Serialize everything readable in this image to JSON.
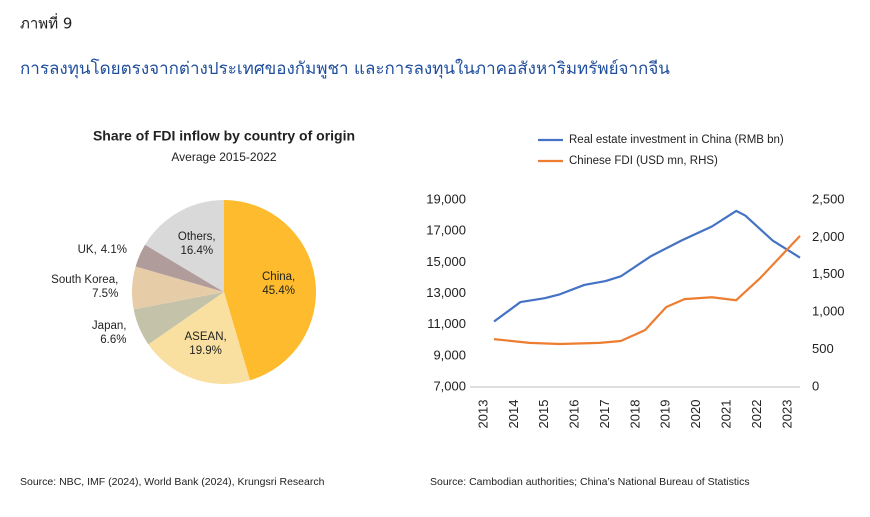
{
  "header": {
    "label": "ภาพที่ 9",
    "title": "การลงทุนโดยตรงจากต่างประเทศของกัมพูชา และการลงทุนในภาคอสังหาริมทรัพย์จากจีน"
  },
  "chart_data": [
    {
      "type": "pie",
      "title": "Share of FDI inflow by country of origin",
      "subtitle": "Average 2015-2022",
      "categories": [
        "China,",
        "ASEAN,",
        "Japan,",
        "South Korea,",
        "UK,",
        "Others,"
      ],
      "values": [
        45.4,
        19.9,
        6.6,
        7.5,
        4.1,
        16.4
      ],
      "value_labels": [
        "45.4%",
        "19.9%",
        "6.6%",
        "7.5%",
        "4.1%",
        "16.4%"
      ],
      "colors": [
        "#fdbb2d",
        "#f9e0a0",
        "#c5c2aa",
        "#e6cda8",
        "#b19c9c",
        "#d9d9d9"
      ],
      "source": "Source: NBC, IMF (2024), World Bank (2024), Krungsri Research"
    },
    {
      "type": "line",
      "xlim": [
        2012.54,
        2023.4
      ],
      "xticks": [
        2013,
        2014,
        2015,
        2016,
        2017,
        2018,
        2019,
        2020,
        2021,
        2022,
        2023
      ],
      "ylim": [
        7000,
        19000
      ],
      "yticks": [
        {
          "value": 7000,
          "label": "7,000"
        },
        {
          "value": 9000,
          "label": "9,000"
        },
        {
          "value": 11000,
          "label": "11,000"
        },
        {
          "value": 13000,
          "label": "13,000"
        },
        {
          "value": 15000,
          "label": "15,000"
        },
        {
          "value": 17000,
          "label": "17,000"
        },
        {
          "value": 19000,
          "label": "19,000"
        }
      ],
      "y2lim": [
        0,
        2500
      ],
      "y2ticks": [
        0,
        500,
        {
          "value": 1000,
          "label": "1,000"
        },
        {
          "value": 1500,
          "label": "1,500"
        },
        {
          "value": 2000,
          "label": "2,000"
        },
        {
          "value": 2500,
          "label": "2,500"
        }
      ],
      "series": [
        {
          "name": "Real estate investment in China (RMB bn)",
          "color": "#4472c4",
          "x": [
            2013.33,
            2014.2,
            2015,
            2015.5,
            2016.3,
            2017,
            2017.5,
            2018.5,
            2019.5,
            2020.5,
            2021.3,
            2021.6,
            2022.5,
            2023.4
          ],
          "values": [
            11200,
            12450,
            12700,
            12950,
            13550,
            13800,
            14100,
            15400,
            16400,
            17300,
            18300,
            18000,
            16400,
            15300
          ]
        },
        {
          "name": "Chinese FDI (USD mn, RHS)",
          "color": "#ed7d31",
          "axis": "y2",
          "x": [
            2013.33,
            2014.5,
            2015.5,
            2016.8,
            2017.5,
            2018.3,
            2019,
            2019.6,
            2020.5,
            2021.3,
            2022.1,
            2023.4
          ],
          "values": [
            640,
            590,
            575,
            590,
            615,
            760,
            1070,
            1175,
            1200,
            1160,
            1460,
            2020
          ]
        }
      ],
      "source": "Source: Cambodian authorities; China’s National Bureau of Statistics"
    }
  ]
}
